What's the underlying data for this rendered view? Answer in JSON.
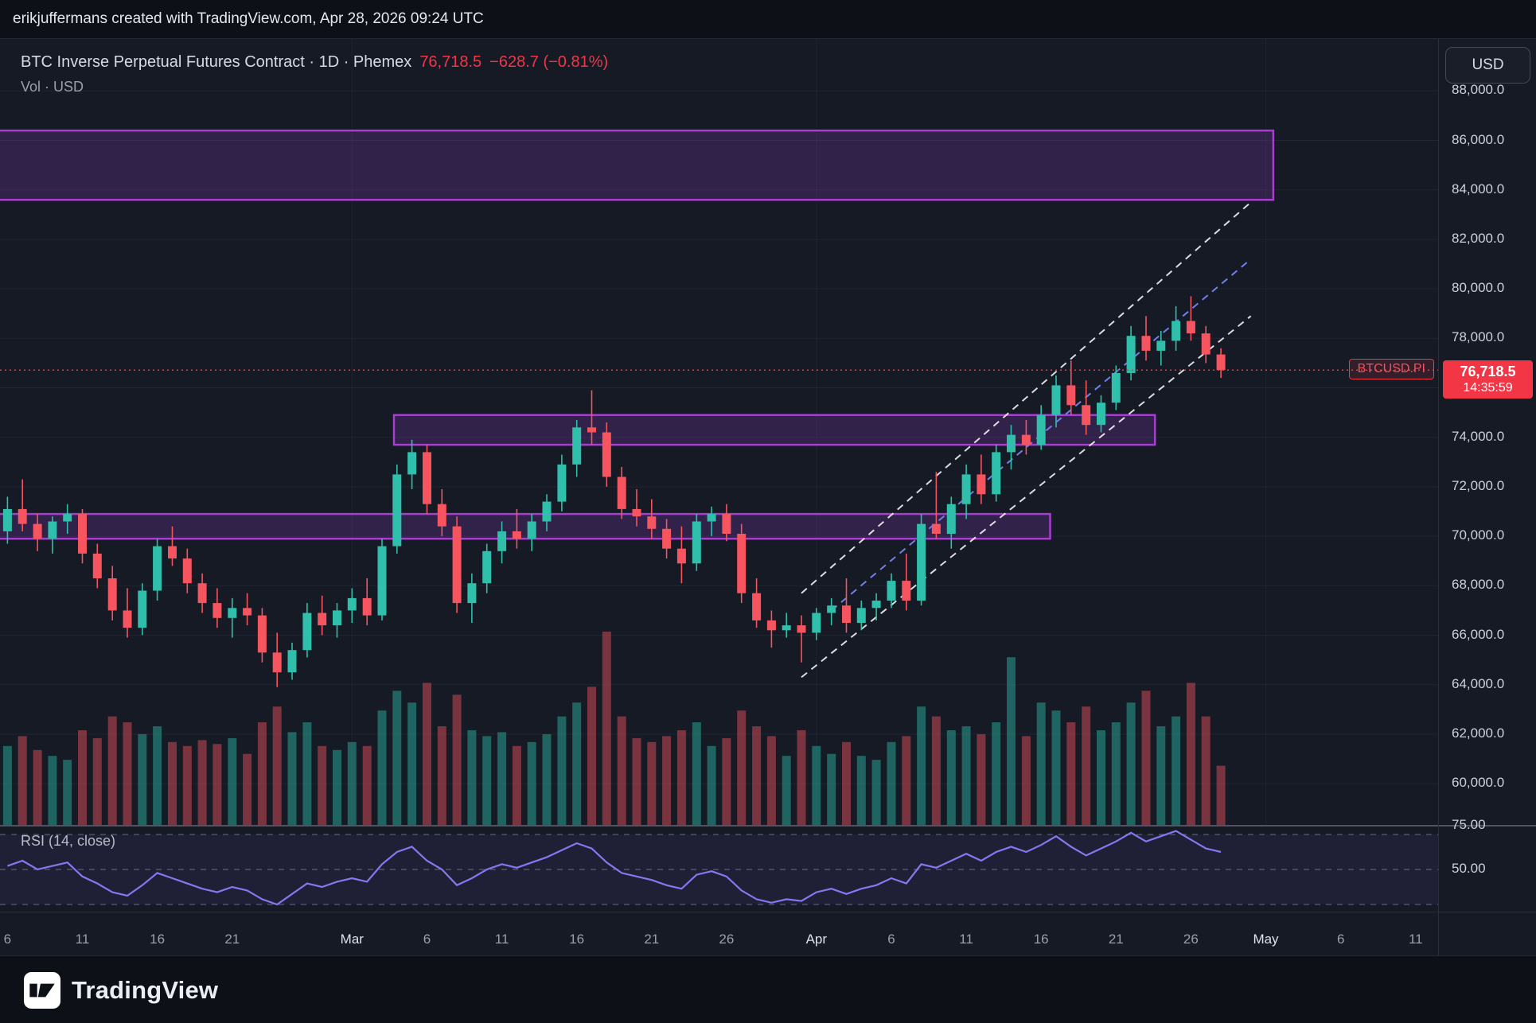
{
  "attribution": "erikjuffermans created with TradingView.com, Apr 28, 2026 09:24 UTC",
  "header": {
    "symbol_line": "BTC Inverse Perpetual Futures Contract · 1D · Phemex",
    "price": "76,718.5",
    "change": "−628.7 (−0.81%)",
    "indicator_line": "Vol · USD"
  },
  "price_axis": {
    "currency_button": "USD",
    "ticker_label": "BTCUSD.PI",
    "price_tag": {
      "price": "76,718.5",
      "countdown": "14:35:59"
    }
  },
  "rsi": {
    "label": "RSI (14, close)",
    "axis": [
      {
        "label": "75.00",
        "value": 75
      },
      {
        "label": "50.00",
        "value": 50
      }
    ]
  },
  "time_axis": {
    "ticks": [
      {
        "l": "6",
        "i": 0
      },
      {
        "l": "11",
        "i": 5
      },
      {
        "l": "16",
        "i": 10
      },
      {
        "l": "21",
        "i": 15
      },
      {
        "l": "Mar",
        "i": 23,
        "m": 1
      },
      {
        "l": "6",
        "i": 28
      },
      {
        "l": "11",
        "i": 33
      },
      {
        "l": "16",
        "i": 38
      },
      {
        "l": "21",
        "i": 43
      },
      {
        "l": "26",
        "i": 48
      },
      {
        "l": "Apr",
        "i": 54,
        "m": 1
      },
      {
        "l": "6",
        "i": 59
      },
      {
        "l": "11",
        "i": 64
      },
      {
        "l": "16",
        "i": 69
      },
      {
        "l": "21",
        "i": 74
      },
      {
        "l": "26",
        "i": 79
      },
      {
        "l": "May",
        "i": 84,
        "m": 1
      },
      {
        "l": "6",
        "i": 89
      },
      {
        "l": "11",
        "i": 94
      }
    ]
  },
  "logo": {
    "text": "TradingView"
  },
  "colors": {
    "up": "#2fbfab",
    "down": "#f6545f",
    "volume_up": "rgba(47,191,171,0.45)",
    "volume_down": "rgba(246,84,95,0.45)",
    "zone_fill": "rgba(146,64,207,0.22)",
    "zone_border": "#a93dd1",
    "channel": "rgba(255,255,255,0.85)",
    "median": "#7280e8",
    "price_line": "#f23645",
    "rsi_line": "#8677f0",
    "rsi_band": "rgba(126,87,194,0.10)"
  },
  "chart_data": {
    "type": "candlestick",
    "title": "BTC Inverse Perpetual Futures Contract",
    "symbol": "BTCUSD.PI",
    "interval": "1D",
    "exchange": "Phemex",
    "last_price": 76718.5,
    "change": -628.7,
    "change_pct": -0.81,
    "ylim": [
      58300,
      90100
    ],
    "y_ticks": [
      88000,
      86000,
      84000,
      82000,
      80000,
      78000,
      76000,
      74000,
      72000,
      70000,
      68000,
      66000,
      64000,
      62000,
      60000
    ],
    "y_tick_labels": [
      "88,000.0",
      "86,000.0",
      "84,000.0",
      "82,000.0",
      "80,000.0",
      "78,000.0",
      "76,000.0",
      "74,000.0",
      "72,000.0",
      "70,000.0",
      "68,000.0",
      "66,000.0",
      "64,000.0",
      "62,000.0",
      "60,000.0"
    ],
    "x_total_slots": 96,
    "month_slots": [
      23,
      54,
      84
    ],
    "zones": [
      {
        "name": "supply-zone-upper",
        "top": 86400,
        "bottom": 83600,
        "i0": -3,
        "i1": 84.5
      },
      {
        "name": "resistance-zone-mid",
        "top": 74900,
        "bottom": 73700,
        "i0": 25.8,
        "i1": 76.6
      },
      {
        "name": "support-zone-lower",
        "top": 70900,
        "bottom": 69900,
        "i0": -3,
        "i1": 69.6
      }
    ],
    "trendlines": [
      {
        "name": "channel-upper",
        "style": "channel",
        "i0": 53,
        "p0": 67700,
        "i1": 83,
        "p1": 83500
      },
      {
        "name": "channel-lower",
        "style": "channel",
        "i0": 53,
        "p0": 64300,
        "i1": 83,
        "p1": 78900
      },
      {
        "name": "channel-median",
        "style": "median",
        "i0": 55,
        "p0": 67000,
        "i1": 83,
        "p1": 81200
      }
    ],
    "candles": {
      "fields": [
        "date",
        "open",
        "high",
        "low",
        "close",
        "vol_rel"
      ],
      "rows": [
        [
          "Feb 6",
          70200,
          71600,
          69700,
          71100,
          0.4
        ],
        [
          "Feb 7",
          71100,
          72300,
          70200,
          70500,
          0.45
        ],
        [
          "Feb 8",
          70500,
          70900,
          69400,
          69900,
          0.38
        ],
        [
          "Feb 9",
          69900,
          70800,
          69300,
          70600,
          0.35
        ],
        [
          "Feb 10",
          70600,
          71300,
          70100,
          70900,
          0.33
        ],
        [
          "Feb 11",
          70900,
          71100,
          68900,
          69300,
          0.48
        ],
        [
          "Feb 12",
          69300,
          69700,
          67900,
          68300,
          0.44
        ],
        [
          "Feb 13",
          68300,
          68800,
          66600,
          67000,
          0.55
        ],
        [
          "Feb 14",
          67000,
          67900,
          65900,
          66300,
          0.52
        ],
        [
          "Feb 15",
          66300,
          68100,
          66000,
          67800,
          0.46
        ],
        [
          "Feb 16",
          67800,
          69900,
          67400,
          69600,
          0.5
        ],
        [
          "Feb 17",
          69600,
          70400,
          68800,
          69100,
          0.42
        ],
        [
          "Feb 18",
          69100,
          69500,
          67700,
          68100,
          0.4
        ],
        [
          "Feb 19",
          68100,
          68500,
          66900,
          67300,
          0.43
        ],
        [
          "Feb 20",
          67300,
          67900,
          66300,
          66700,
          0.41
        ],
        [
          "Feb 21",
          66700,
          67500,
          65900,
          67100,
          0.44
        ],
        [
          "Feb 22",
          67100,
          67700,
          66400,
          66800,
          0.36
        ],
        [
          "Feb 23",
          66800,
          67100,
          64900,
          65300,
          0.52
        ],
        [
          "Feb 24",
          65300,
          66100,
          63900,
          64500,
          0.6
        ],
        [
          "Feb 25",
          64500,
          65700,
          64200,
          65400,
          0.47
        ],
        [
          "Feb 26",
          65400,
          67300,
          65100,
          66900,
          0.52
        ],
        [
          "Feb 27",
          66900,
          67600,
          66000,
          66400,
          0.4
        ],
        [
          "Feb 28",
          66400,
          67300,
          65900,
          67000,
          0.38
        ],
        [
          "Mar 1",
          67000,
          67900,
          66500,
          67500,
          0.42
        ],
        [
          "Mar 2",
          67500,
          68300,
          66400,
          66800,
          0.4
        ],
        [
          "Mar 3",
          66800,
          69900,
          66600,
          69600,
          0.58
        ],
        [
          "Mar 4",
          69600,
          72900,
          69300,
          72500,
          0.68
        ],
        [
          "Mar 5",
          72500,
          73900,
          71900,
          73400,
          0.62
        ],
        [
          "Mar 6",
          73400,
          73700,
          70900,
          71300,
          0.72
        ],
        [
          "Mar 7",
          71300,
          71900,
          70000,
          70400,
          0.5
        ],
        [
          "Mar 8",
          70400,
          70800,
          66900,
          67300,
          0.66
        ],
        [
          "Mar 9",
          67300,
          68500,
          66500,
          68100,
          0.48
        ],
        [
          "Mar 10",
          68100,
          69700,
          67700,
          69400,
          0.45
        ],
        [
          "Mar 11",
          69400,
          70600,
          68900,
          70200,
          0.47
        ],
        [
          "Mar 12",
          70200,
          71100,
          69500,
          69900,
          0.4
        ],
        [
          "Mar 13",
          69900,
          70900,
          69400,
          70600,
          0.42
        ],
        [
          "Mar 14",
          70600,
          71700,
          70200,
          71400,
          0.46
        ],
        [
          "Mar 15",
          71400,
          73300,
          71000,
          72900,
          0.55
        ],
        [
          "Mar 16",
          72900,
          74700,
          72400,
          74400,
          0.62
        ],
        [
          "Mar 17",
          74400,
          75900,
          73700,
          74200,
          0.7
        ],
        [
          "Mar 18",
          74200,
          74600,
          72000,
          72400,
          0.98
        ],
        [
          "Mar 19",
          72400,
          72800,
          70700,
          71100,
          0.55
        ],
        [
          "Mar 20",
          71100,
          71900,
          70400,
          70800,
          0.44
        ],
        [
          "Mar 21",
          70800,
          71500,
          69900,
          70300,
          0.42
        ],
        [
          "Mar 22",
          70300,
          70700,
          69100,
          69500,
          0.45
        ],
        [
          "Mar 23",
          69500,
          70400,
          68100,
          68900,
          0.48
        ],
        [
          "Mar 24",
          68900,
          70900,
          68600,
          70600,
          0.52
        ],
        [
          "Mar 25",
          70600,
          71200,
          70000,
          70900,
          0.4
        ],
        [
          "Mar 26",
          70900,
          71300,
          69800,
          70100,
          0.44
        ],
        [
          "Mar 27",
          70100,
          70500,
          67300,
          67700,
          0.58
        ],
        [
          "Mar 28",
          67700,
          68300,
          66300,
          66600,
          0.5
        ],
        [
          "Mar 29",
          66600,
          67000,
          65500,
          66200,
          0.45
        ],
        [
          "Mar 30",
          66200,
          66900,
          65900,
          66400,
          0.35
        ],
        [
          "Mar 31",
          66400,
          66800,
          64900,
          66100,
          0.48
        ],
        [
          "Apr 1",
          66100,
          67100,
          65800,
          66900,
          0.4
        ],
        [
          "Apr 2",
          66900,
          67500,
          66400,
          67200,
          0.36
        ],
        [
          "Apr 3",
          67200,
          68300,
          66100,
          66500,
          0.42
        ],
        [
          "Apr 4",
          66500,
          67400,
          66200,
          67100,
          0.35
        ],
        [
          "Apr 5",
          67100,
          67700,
          66600,
          67400,
          0.33
        ],
        [
          "Apr 6",
          67400,
          68500,
          67100,
          68200,
          0.42
        ],
        [
          "Apr 7",
          68200,
          69300,
          67000,
          67400,
          0.45
        ],
        [
          "Apr 8",
          67400,
          70900,
          67200,
          70500,
          0.6
        ],
        [
          "Apr 9",
          70500,
          72600,
          69900,
          70100,
          0.55
        ],
        [
          "Apr 10",
          70100,
          71600,
          69500,
          71300,
          0.48
        ],
        [
          "Apr 11",
          71300,
          72900,
          70700,
          72500,
          0.5
        ],
        [
          "Apr 12",
          72500,
          73300,
          71300,
          71700,
          0.46
        ],
        [
          "Apr 13",
          71700,
          73700,
          71400,
          73400,
          0.52
        ],
        [
          "Apr 14",
          73400,
          74500,
          72700,
          74100,
          0.85
        ],
        [
          "Apr 15",
          74100,
          74700,
          73300,
          73700,
          0.45
        ],
        [
          "Apr 16",
          73700,
          75300,
          73500,
          74900,
          0.62
        ],
        [
          "Apr 17",
          74900,
          76500,
          74400,
          76100,
          0.58
        ],
        [
          "Apr 18",
          76100,
          77100,
          74900,
          75300,
          0.52
        ],
        [
          "Apr 19",
          75300,
          76300,
          74100,
          74500,
          0.6
        ],
        [
          "Apr 20",
          74500,
          75700,
          74200,
          75400,
          0.48
        ],
        [
          "Apr 21",
          75400,
          76900,
          75100,
          76600,
          0.52
        ],
        [
          "Apr 22",
          76600,
          78500,
          76300,
          78100,
          0.62
        ],
        [
          "Apr 23",
          78100,
          78900,
          77100,
          77500,
          0.68
        ],
        [
          "Apr 24",
          77500,
          78300,
          76900,
          77900,
          0.5
        ],
        [
          "Apr 25",
          77900,
          79300,
          77500,
          78700,
          0.55
        ],
        [
          "Apr 26",
          78700,
          79700,
          77900,
          78200,
          0.72
        ],
        [
          "Apr 27",
          78200,
          78500,
          77000,
          77347.2,
          0.55
        ],
        [
          "Apr 28",
          77347.2,
          77600,
          76400,
          76718.5,
          0.3
        ]
      ]
    },
    "rsi": {
      "period": "14, close",
      "band": [
        30,
        70
      ],
      "values": [
        52,
        55,
        50,
        52,
        54,
        46,
        42,
        37,
        35,
        41,
        48,
        45,
        42,
        39,
        37,
        40,
        38,
        33,
        30,
        36,
        42,
        40,
        43,
        45,
        43,
        53,
        60,
        63,
        55,
        50,
        41,
        45,
        50,
        53,
        51,
        54,
        57,
        61,
        65,
        62,
        54,
        48,
        46,
        44,
        41,
        39,
        47,
        49,
        46,
        38,
        33,
        31,
        33,
        32,
        37,
        39,
        36,
        39,
        41,
        45,
        42,
        53,
        51,
        55,
        59,
        55,
        60,
        63,
        60,
        64,
        69,
        63,
        58,
        62,
        66,
        71,
        66,
        69,
        72,
        67,
        62,
        60
      ]
    }
  }
}
